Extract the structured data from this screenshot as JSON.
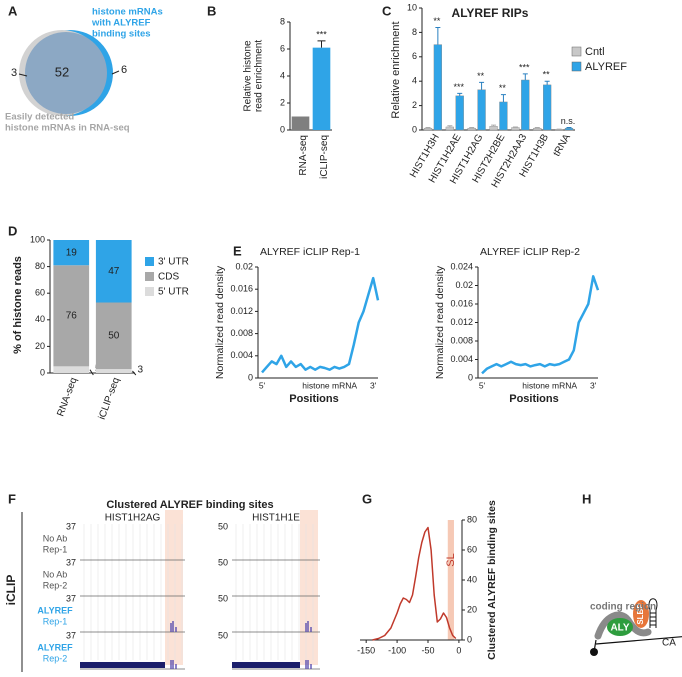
{
  "panel_labels": [
    "A",
    "B",
    "C",
    "D",
    "E",
    "F",
    "G",
    "H"
  ],
  "chart_data": [
    {
      "type": "venn",
      "values": [
        3,
        52,
        6
      ],
      "sets": [
        {
          "lines": [
            "Easily detected",
            "histone mRNAs in RNA-seq"
          ],
          "color": "#a6a6a6"
        },
        {
          "lines": [
            "histone mRNAs",
            "with ALYREF",
            "binding sites"
          ],
          "color": "#2fa4e7"
        }
      ]
    },
    {
      "type": "bar",
      "ylabel": [
        "Relative histone",
        "read enrichment"
      ],
      "categories": [
        "RNA-seq",
        "iCLIP-seq"
      ],
      "values": [
        1,
        6.1
      ],
      "errors": [
        null,
        0.5
      ],
      "annotations": [
        null,
        "***"
      ],
      "colors": [
        "#7f7f7f",
        "#2fa4e7"
      ],
      "ylim": [
        0,
        8
      ],
      "yticks": [
        0,
        2,
        4,
        6,
        8
      ]
    },
    {
      "type": "grouped_bar",
      "title": "ALYREF RIPs",
      "ylabel": "Relative enrichment",
      "categories": [
        "HIST1H3H",
        "HIST1H2AE",
        "HIST1H2AG",
        "HIST2H2BE",
        "HIST2H2AA3",
        "HIST1H3B",
        "tRNA"
      ],
      "series": [
        {
          "name": "Cntl",
          "color": "#c8c8c8",
          "values": [
            0.15,
            0.25,
            0.15,
            0.3,
            0.2,
            0.15,
            0.05
          ],
          "errors": [
            0.05,
            0.1,
            0.05,
            0.1,
            0.05,
            0.05,
            0.02
          ]
        },
        {
          "name": "ALYREF",
          "color": "#2fa4e7",
          "values": [
            7.0,
            2.8,
            3.3,
            2.3,
            4.1,
            3.7,
            0.15
          ],
          "errors": [
            1.4,
            0.2,
            0.6,
            0.6,
            0.5,
            0.3,
            0.05
          ]
        }
      ],
      "annotations": [
        "**",
        "***",
        "**",
        "**",
        "***",
        "**",
        "n.s."
      ],
      "ylim": [
        0,
        10
      ],
      "yticks": [
        0,
        2,
        4,
        6,
        8,
        10
      ]
    },
    {
      "type": "stacked_bar",
      "ylabel": "% of histone reads",
      "categories": [
        "RNA-seq",
        "iCLIP-seq"
      ],
      "series": [
        {
          "name": "5' UTR",
          "color": "#dcdcdc",
          "values": [
            5,
            3
          ]
        },
        {
          "name": "CDS",
          "color": "#a8a8a8",
          "values": [
            76,
            50
          ]
        },
        {
          "name": "3' UTR",
          "color": "#2fa4e7",
          "values": [
            19,
            47
          ]
        }
      ],
      "ylim": [
        0,
        100
      ],
      "yticks": [
        0,
        20,
        40,
        60,
        80,
        100
      ]
    },
    {
      "type": "line",
      "title": "ALYREF iCLIP Rep-1",
      "ylabel": "Normalized read density",
      "xlabel": "Positions",
      "color": "#2fa4e7",
      "categories": [
        "5'",
        null,
        null,
        null,
        null,
        null,
        null,
        null,
        null,
        null,
        null,
        null,
        null,
        null,
        "histone mRNA",
        null,
        null,
        null,
        null,
        null,
        null,
        null,
        null,
        "3'",
        null
      ],
      "values": [
        0.001,
        0.002,
        0.003,
        0.0025,
        0.004,
        0.002,
        0.003,
        0.002,
        0.0025,
        0.0015,
        0.002,
        0.0015,
        0.002,
        0.0018,
        0.0015,
        0.002,
        0.0017,
        0.002,
        0.0025,
        0.006,
        0.01,
        0.012,
        0.015,
        0.018,
        0.014
      ],
      "ylim": [
        0,
        0.02
      ],
      "yticks": [
        0,
        0.004,
        0.008,
        0.012,
        0.016,
        0.02
      ]
    },
    {
      "type": "line",
      "title": "ALYREF iCLIP Rep-2",
      "ylabel": "Normalized read density",
      "xlabel": "Positions",
      "color": "#2fa4e7",
      "categories": [
        "5'",
        null,
        null,
        null,
        null,
        null,
        null,
        null,
        null,
        null,
        null,
        null,
        null,
        null,
        "histone mRNA",
        null,
        null,
        null,
        null,
        null,
        null,
        null,
        null,
        "3'",
        null
      ],
      "values": [
        0.001,
        0.002,
        0.0025,
        0.003,
        0.0025,
        0.003,
        0.0035,
        0.003,
        0.0028,
        0.003,
        0.0025,
        0.0028,
        0.003,
        0.0025,
        0.003,
        0.0028,
        0.003,
        0.0035,
        0.004,
        0.006,
        0.012,
        0.014,
        0.016,
        0.022,
        0.019
      ],
      "ylim": [
        0,
        0.024
      ],
      "yticks": [
        0,
        0.004,
        0.008,
        0.012,
        0.016,
        0.02,
        0.024
      ]
    },
    {
      "type": "xy_line",
      "ylabel": "Clustered ALYREF binding sites",
      "color": "#c0392b",
      "x": [
        -140,
        -130,
        -120,
        -110,
        -100,
        -95,
        -90,
        -85,
        -80,
        -75,
        -70,
        -65,
        -60,
        -55,
        -50,
        -45,
        -40,
        -35,
        -30,
        -25,
        -20,
        -15,
        -10,
        -5
      ],
      "values": [
        0,
        1,
        3,
        8,
        18,
        24,
        28,
        27,
        25,
        30,
        42,
        55,
        65,
        72,
        75,
        60,
        30,
        12,
        14,
        18,
        15,
        8,
        3,
        1
      ],
      "xlim": [
        -160,
        5
      ],
      "xticks": [
        -150,
        -100,
        -50,
        0
      ],
      "ylim": [
        0,
        80
      ],
      "yticks": [
        0,
        20,
        40,
        60,
        80
      ],
      "band": {
        "label": "SL",
        "range": [
          -18,
          -8
        ],
        "color": "#f6c9b5"
      }
    }
  ],
  "tracks": {
    "title": "Clustered ALYREF binding sites",
    "side_label": "iCLIP",
    "genes": [
      {
        "name": "HIST1H2AG",
        "scale": 37
      },
      {
        "name": "HIST1H1E",
        "scale": 50
      }
    ],
    "rows": [
      {
        "lines": [
          "No Ab",
          "Rep-1"
        ],
        "color": "#555555"
      },
      {
        "lines": [
          "No Ab",
          "Rep-2"
        ],
        "color": "#555555"
      },
      {
        "lines": [
          "ALYREF",
          "Rep-1"
        ],
        "color": "#2fa4e7"
      },
      {
        "lines": [
          "ALYREF",
          "Rep-2"
        ],
        "color": "#2fa4e7"
      }
    ]
  },
  "diagram": {
    "coding": "coding region",
    "aly": "ALY",
    "slbp": "SLBP",
    "tail": "CA"
  }
}
